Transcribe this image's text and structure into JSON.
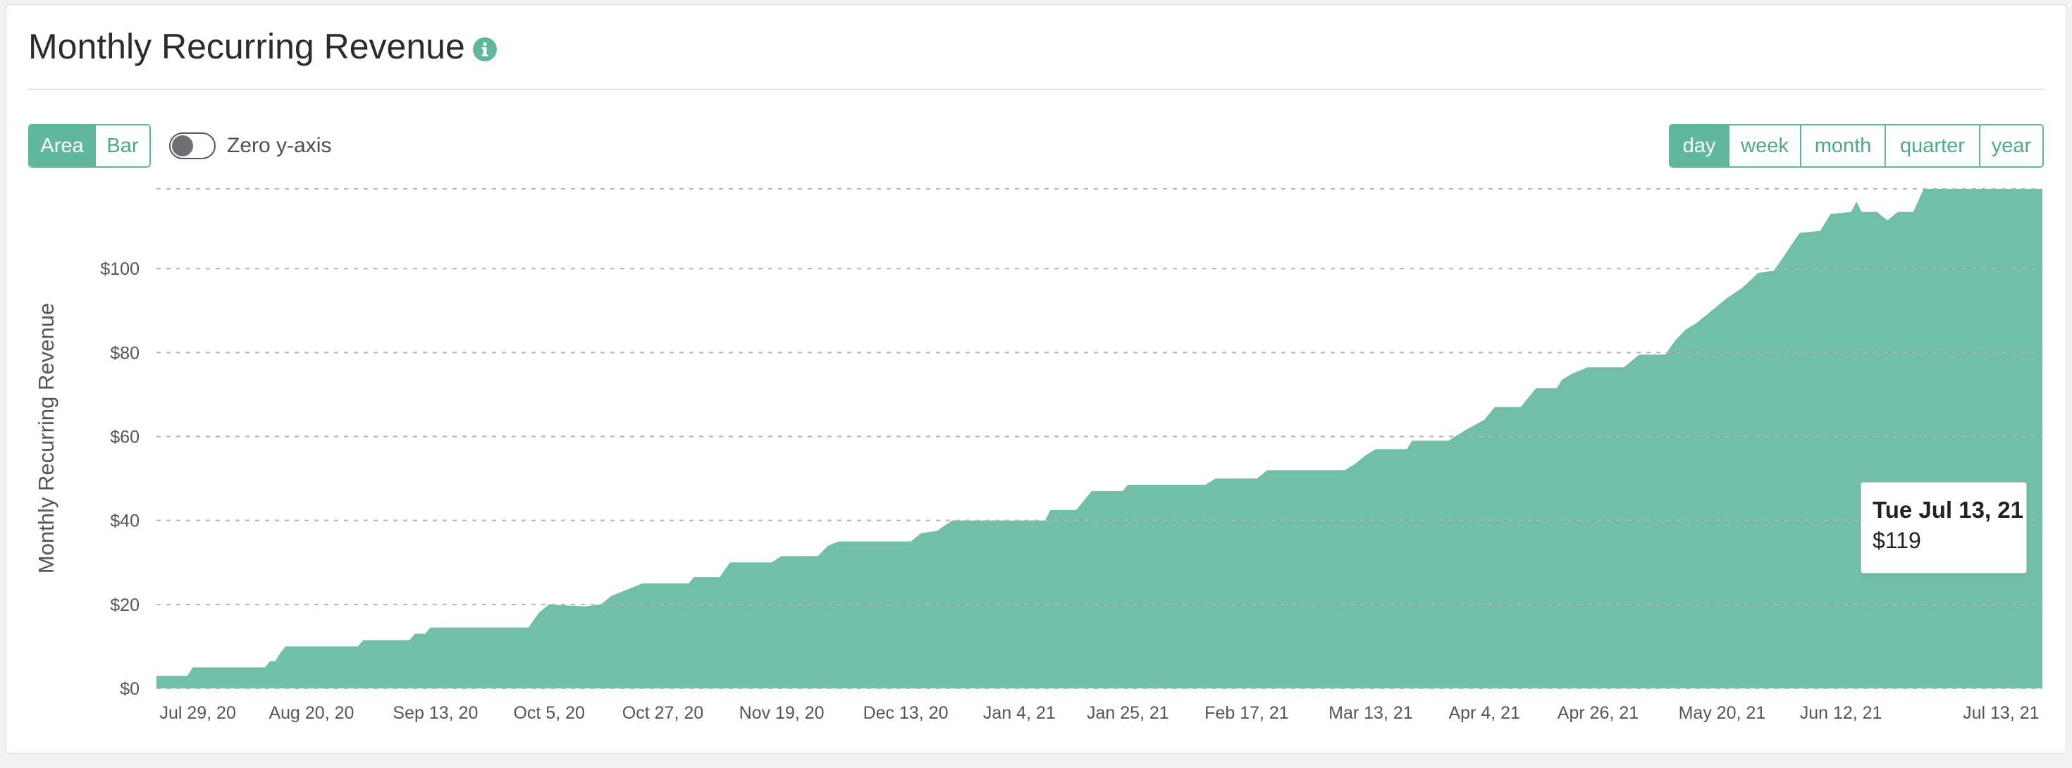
{
  "header": {
    "title": "Monthly Recurring Revenue",
    "info_icon": "info-icon"
  },
  "controls": {
    "chart_type": {
      "options": [
        "Area",
        "Bar"
      ],
      "selected": "Area"
    },
    "zero_axis": {
      "label": "Zero y-axis",
      "on": false
    },
    "interval": {
      "options": [
        "day",
        "week",
        "month",
        "quarter",
        "year"
      ],
      "selected": "day"
    }
  },
  "colors": {
    "accent": "#5fb89e",
    "area_fill": "#72bfa9",
    "grid": "#b5b5b5",
    "toggle_knob": "#6d6f73"
  },
  "tooltip": {
    "date": "Tue Jul 13, 21",
    "value": "$119"
  },
  "chart_data": {
    "type": "area",
    "title": "Monthly Recurring Revenue",
    "ylabel": "Monthly Recurring Revenue",
    "xlabel": "",
    "ylim": [
      0,
      119
    ],
    "yticks": [
      0,
      20,
      40,
      60,
      80,
      100
    ],
    "ytick_labels": [
      "$0",
      "$20",
      "$40",
      "$60",
      "$80",
      "$100"
    ],
    "xlim": [
      "2020-07-21",
      "2021-07-21"
    ],
    "xticks": [
      {
        "date": "2020-07-29",
        "label": "Jul 29, 20"
      },
      {
        "date": "2020-08-20",
        "label": "Aug 20, 20"
      },
      {
        "date": "2020-09-13",
        "label": "Sep 13, 20"
      },
      {
        "date": "2020-10-05",
        "label": "Oct 5, 20"
      },
      {
        "date": "2020-10-27",
        "label": "Oct 27, 20"
      },
      {
        "date": "2020-11-19",
        "label": "Nov 19, 20"
      },
      {
        "date": "2020-12-13",
        "label": "Dec 13, 20"
      },
      {
        "date": "2021-01-04",
        "label": "Jan 4, 21"
      },
      {
        "date": "2021-01-25",
        "label": "Jan 25, 21"
      },
      {
        "date": "2021-02-17",
        "label": "Feb 17, 21"
      },
      {
        "date": "2021-03-13",
        "label": "Mar 13, 21"
      },
      {
        "date": "2021-04-04",
        "label": "Apr 4, 21"
      },
      {
        "date": "2021-04-26",
        "label": "Apr 26, 21"
      },
      {
        "date": "2021-05-20",
        "label": "May 20, 21"
      },
      {
        "date": "2021-06-12",
        "label": "Jun 12, 21"
      },
      {
        "date": "2021-07-13",
        "label": "Jul 13, 21"
      }
    ],
    "grid": true,
    "legend": "none",
    "points": [
      [
        "2020-07-21",
        3
      ],
      [
        "2020-07-27",
        3
      ],
      [
        "2020-07-28",
        5
      ],
      [
        "2020-08-11",
        5
      ],
      [
        "2020-08-12",
        6.5
      ],
      [
        "2020-08-13",
        6.5
      ],
      [
        "2020-08-14",
        8.5
      ],
      [
        "2020-08-15",
        10
      ],
      [
        "2020-08-29",
        10
      ],
      [
        "2020-08-30",
        11.5
      ],
      [
        "2020-09-08",
        11.5
      ],
      [
        "2020-09-09",
        13
      ],
      [
        "2020-09-11",
        13
      ],
      [
        "2020-09-12",
        14.5
      ],
      [
        "2020-10-01",
        14.5
      ],
      [
        "2020-10-03",
        18
      ],
      [
        "2020-10-05",
        20
      ],
      [
        "2020-10-12",
        19.5
      ],
      [
        "2020-10-15",
        20
      ],
      [
        "2020-10-17",
        22
      ],
      [
        "2020-10-20",
        23.5
      ],
      [
        "2020-10-23",
        25
      ],
      [
        "2020-11-01",
        25
      ],
      [
        "2020-11-02",
        26.5
      ],
      [
        "2020-11-07",
        26.5
      ],
      [
        "2020-11-09",
        30
      ],
      [
        "2020-11-17",
        30
      ],
      [
        "2020-11-19",
        31.5
      ],
      [
        "2020-11-26",
        31.5
      ],
      [
        "2020-11-28",
        34
      ],
      [
        "2020-11-30",
        35
      ],
      [
        "2020-12-14",
        35
      ],
      [
        "2020-12-16",
        37
      ],
      [
        "2020-12-19",
        37.5
      ],
      [
        "2020-12-22",
        40
      ],
      [
        "2021-01-09",
        40
      ],
      [
        "2021-01-10",
        42.5
      ],
      [
        "2021-01-15",
        42.5
      ],
      [
        "2021-01-18",
        47
      ],
      [
        "2021-01-24",
        47
      ],
      [
        "2021-01-25",
        48.5
      ],
      [
        "2021-02-09",
        48.5
      ],
      [
        "2021-02-11",
        50
      ],
      [
        "2021-02-19",
        50
      ],
      [
        "2021-02-21",
        52
      ],
      [
        "2021-03-08",
        52
      ],
      [
        "2021-03-10",
        53.5
      ],
      [
        "2021-03-12",
        55.5
      ],
      [
        "2021-03-14",
        57
      ],
      [
        "2021-03-20",
        57
      ],
      [
        "2021-03-21",
        59
      ],
      [
        "2021-03-28",
        59
      ],
      [
        "2021-03-30",
        60.5
      ],
      [
        "2021-04-01",
        62
      ],
      [
        "2021-04-04",
        64
      ],
      [
        "2021-04-06",
        67
      ],
      [
        "2021-04-11",
        67
      ],
      [
        "2021-04-14",
        71.5
      ],
      [
        "2021-04-18",
        71.5
      ],
      [
        "2021-04-19",
        73.5
      ],
      [
        "2021-04-21",
        75
      ],
      [
        "2021-04-24",
        76.5
      ],
      [
        "2021-05-01",
        76.5
      ],
      [
        "2021-05-04",
        79.5
      ],
      [
        "2021-05-09",
        79.5
      ],
      [
        "2021-05-11",
        83
      ],
      [
        "2021-05-13",
        85.5
      ],
      [
        "2021-05-15",
        87
      ],
      [
        "2021-05-17",
        89
      ],
      [
        "2021-05-19",
        91
      ],
      [
        "2021-05-21",
        93
      ],
      [
        "2021-05-24",
        95.5
      ],
      [
        "2021-05-27",
        99
      ],
      [
        "2021-05-30",
        99.5
      ],
      [
        "2021-06-01",
        103
      ],
      [
        "2021-06-04",
        108.5
      ],
      [
        "2021-06-08",
        109
      ],
      [
        "2021-06-10",
        113
      ],
      [
        "2021-06-14",
        113.5
      ],
      [
        "2021-06-15",
        116
      ],
      [
        "2021-06-16",
        113.5
      ],
      [
        "2021-06-19",
        113.5
      ],
      [
        "2021-06-21",
        111.5
      ],
      [
        "2021-06-23",
        113.5
      ],
      [
        "2021-06-26",
        113.5
      ],
      [
        "2021-06-28",
        119
      ]
    ]
  }
}
